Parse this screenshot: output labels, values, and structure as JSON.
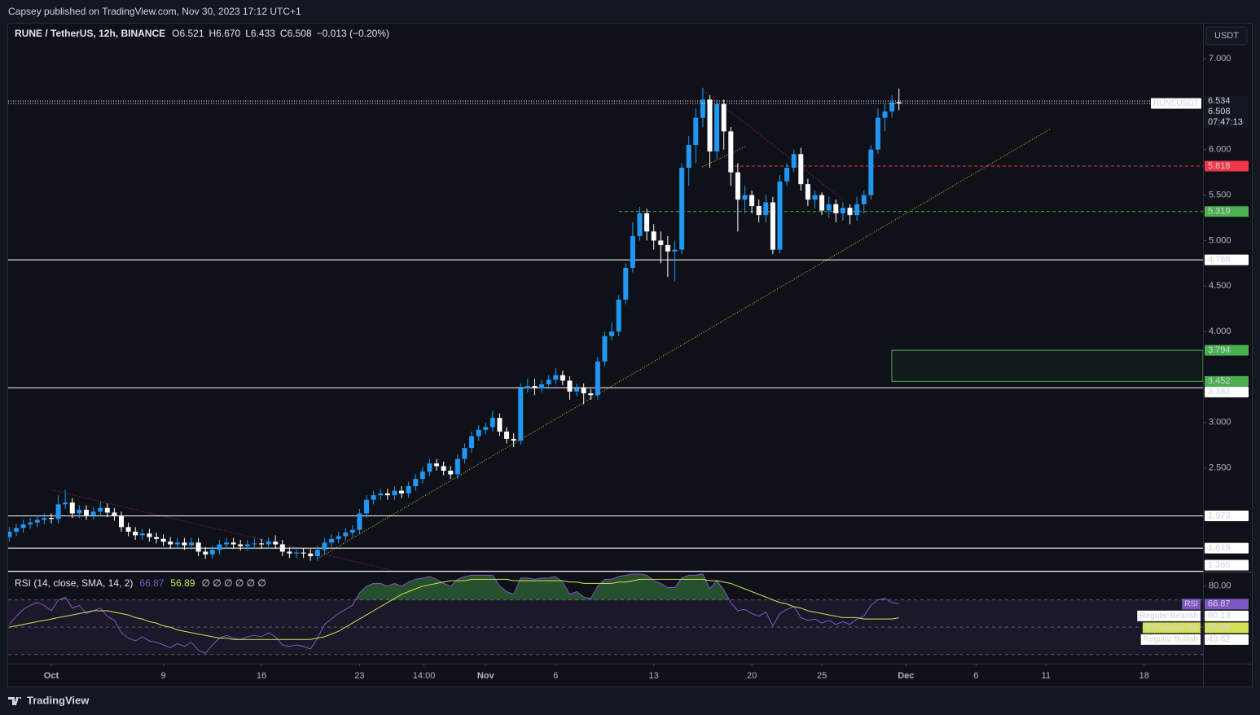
{
  "header": {
    "published": "Capsey published on TradingView.com, Nov 30, 2023 17:12 UTC+1",
    "currency": "USDT",
    "brand": "TradingView"
  },
  "chart_data": [
    {
      "type": "candlestick",
      "title": "RUNE / TetherUS, 12h, BINANCE",
      "legend": [
        "O6.521",
        "H6.670",
        "L6.433",
        "C6.508",
        "−0.013 (−0.20%)"
      ],
      "up_color": "#2196f3",
      "down_color": "#ffffff",
      "xlim": [
        -0.16,
        170.4
      ],
      "ylim": [
        1.36,
        7.376
      ],
      "yticks": [
        {
          "value": 7,
          "label": "7.000"
        },
        {
          "value": 6,
          "label": "6.000"
        },
        {
          "value": 5.5,
          "label": "5.500"
        },
        {
          "value": 5,
          "label": "5.000"
        },
        {
          "value": 4.5,
          "label": "4.500"
        },
        {
          "value": 4,
          "label": "4.000"
        },
        {
          "value": 3,
          "label": "3.000"
        },
        {
          "value": 2.5,
          "label": "2.500"
        }
      ],
      "ohlc": [
        [
          1.74,
          1.85,
          1.69,
          1.8
        ],
        [
          1.8,
          1.89,
          1.75,
          1.84
        ],
        [
          1.84,
          1.93,
          1.79,
          1.88
        ],
        [
          1.88,
          1.95,
          1.83,
          1.9
        ],
        [
          1.9,
          1.98,
          1.85,
          1.93
        ],
        [
          1.93,
          2.0,
          1.88,
          1.95
        ],
        [
          1.95,
          2.0,
          1.89,
          1.94
        ],
        [
          1.94,
          2.2,
          1.89,
          2.1
        ],
        [
          2.1,
          2.26,
          2.05,
          2.12
        ],
        [
          2.12,
          2.17,
          1.95,
          2.0
        ],
        [
          2.0,
          2.09,
          1.95,
          2.04
        ],
        [
          2.04,
          2.09,
          1.93,
          1.98
        ],
        [
          1.98,
          2.07,
          1.93,
          2.02
        ],
        [
          2.02,
          2.13,
          1.97,
          2.06
        ],
        [
          2.06,
          2.11,
          1.96,
          2.01
        ],
        [
          2.01,
          2.06,
          1.92,
          1.97
        ],
        [
          1.97,
          2.02,
          1.8,
          1.85
        ],
        [
          1.85,
          1.9,
          1.75,
          1.8
        ],
        [
          1.8,
          1.85,
          1.71,
          1.76
        ],
        [
          1.76,
          1.83,
          1.71,
          1.78
        ],
        [
          1.78,
          1.83,
          1.69,
          1.74
        ],
        [
          1.74,
          1.79,
          1.67,
          1.72
        ],
        [
          1.72,
          1.77,
          1.64,
          1.69
        ],
        [
          1.69,
          1.74,
          1.61,
          1.66
        ],
        [
          1.66,
          1.73,
          1.61,
          1.68
        ],
        [
          1.68,
          1.73,
          1.6,
          1.65
        ],
        [
          1.65,
          1.73,
          1.6,
          1.68
        ],
        [
          1.68,
          1.73,
          1.53,
          1.58
        ],
        [
          1.58,
          1.63,
          1.5,
          1.55
        ],
        [
          1.55,
          1.65,
          1.5,
          1.6
        ],
        [
          1.6,
          1.71,
          1.55,
          1.66
        ],
        [
          1.66,
          1.73,
          1.61,
          1.68
        ],
        [
          1.68,
          1.73,
          1.61,
          1.66
        ],
        [
          1.66,
          1.71,
          1.59,
          1.64
        ],
        [
          1.64,
          1.71,
          1.59,
          1.66
        ],
        [
          1.66,
          1.72,
          1.61,
          1.67
        ],
        [
          1.67,
          1.72,
          1.61,
          1.66
        ],
        [
          1.66,
          1.74,
          1.61,
          1.69
        ],
        [
          1.69,
          1.76,
          1.61,
          1.66
        ],
        [
          1.66,
          1.71,
          1.53,
          1.58
        ],
        [
          1.58,
          1.63,
          1.51,
          1.56
        ],
        [
          1.56,
          1.62,
          1.51,
          1.57
        ],
        [
          1.57,
          1.62,
          1.51,
          1.56
        ],
        [
          1.56,
          1.61,
          1.48,
          1.53
        ],
        [
          1.53,
          1.65,
          1.48,
          1.6
        ],
        [
          1.6,
          1.73,
          1.55,
          1.68
        ],
        [
          1.68,
          1.77,
          1.63,
          1.72
        ],
        [
          1.72,
          1.8,
          1.67,
          1.75
        ],
        [
          1.75,
          1.84,
          1.7,
          1.79
        ],
        [
          1.79,
          1.87,
          1.74,
          1.82
        ],
        [
          1.82,
          2.05,
          1.77,
          2.0
        ],
        [
          2.0,
          2.2,
          1.95,
          2.15
        ],
        [
          2.15,
          2.25,
          2.1,
          2.2
        ],
        [
          2.2,
          2.27,
          2.15,
          2.22
        ],
        [
          2.22,
          2.27,
          2.15,
          2.2
        ],
        [
          2.2,
          2.3,
          2.15,
          2.25
        ],
        [
          2.25,
          2.3,
          2.17,
          2.22
        ],
        [
          2.22,
          2.35,
          2.17,
          2.3
        ],
        [
          2.3,
          2.43,
          2.25,
          2.38
        ],
        [
          2.38,
          2.51,
          2.33,
          2.46
        ],
        [
          2.46,
          2.6,
          2.41,
          2.55
        ],
        [
          2.55,
          2.6,
          2.47,
          2.52
        ],
        [
          2.52,
          2.57,
          2.42,
          2.47
        ],
        [
          2.47,
          2.52,
          2.38,
          2.43
        ],
        [
          2.43,
          2.65,
          2.38,
          2.6
        ],
        [
          2.6,
          2.77,
          2.55,
          2.72
        ],
        [
          2.72,
          2.9,
          2.67,
          2.85
        ],
        [
          2.85,
          2.97,
          2.8,
          2.92
        ],
        [
          2.92,
          3.0,
          2.87,
          2.95
        ],
        [
          2.95,
          3.13,
          2.9,
          3.05
        ],
        [
          3.05,
          3.1,
          2.85,
          2.9
        ],
        [
          2.9,
          2.95,
          2.77,
          2.82
        ],
        [
          2.82,
          2.88,
          2.73,
          2.8
        ],
        [
          2.8,
          3.43,
          2.75,
          3.38
        ],
        [
          3.38,
          3.48,
          3.33,
          3.4
        ],
        [
          3.4,
          3.48,
          3.3,
          3.38
        ],
        [
          3.38,
          3.47,
          3.33,
          3.42
        ],
        [
          3.42,
          3.52,
          3.37,
          3.47
        ],
        [
          3.47,
          3.6,
          3.42,
          3.52
        ],
        [
          3.52,
          3.57,
          3.41,
          3.46
        ],
        [
          3.46,
          3.51,
          3.25,
          3.34
        ],
        [
          3.34,
          3.43,
          3.29,
          3.38
        ],
        [
          3.38,
          3.43,
          3.2,
          3.32
        ],
        [
          3.32,
          3.37,
          3.25,
          3.3
        ],
        [
          3.3,
          3.72,
          3.25,
          3.67
        ],
        [
          3.67,
          4.0,
          3.62,
          3.95
        ],
        [
          3.95,
          4.1,
          3.9,
          4.0
        ],
        [
          4.0,
          4.4,
          3.95,
          4.35
        ],
        [
          4.35,
          4.75,
          4.3,
          4.7
        ],
        [
          4.7,
          5.2,
          4.65,
          5.05
        ],
        [
          5.05,
          5.37,
          5.0,
          5.3
        ],
        [
          5.3,
          5.35,
          5.0,
          5.1
        ],
        [
          5.1,
          5.18,
          4.9,
          5.0
        ],
        [
          5.0,
          5.1,
          4.75,
          4.95
        ],
        [
          4.95,
          5.05,
          4.6,
          4.88
        ],
        [
          4.88,
          5.0,
          4.55,
          4.9
        ],
        [
          4.9,
          5.85,
          4.85,
          5.8
        ],
        [
          5.8,
          6.15,
          5.6,
          6.05
        ],
        [
          6.05,
          6.45,
          5.85,
          6.35
        ],
        [
          6.35,
          6.68,
          6.25,
          6.55
        ],
        [
          6.55,
          6.6,
          5.8,
          5.98
        ],
        [
          5.98,
          6.55,
          5.9,
          6.5
        ],
        [
          6.5,
          6.55,
          6.0,
          6.2
        ],
        [
          6.2,
          6.25,
          5.6,
          5.75
        ],
        [
          5.75,
          5.85,
          5.1,
          5.45
        ],
        [
          5.45,
          5.6,
          5.3,
          5.5
        ],
        [
          5.5,
          5.55,
          5.3,
          5.38
        ],
        [
          5.38,
          5.45,
          5.2,
          5.28
        ],
        [
          5.28,
          5.5,
          5.2,
          5.42
        ],
        [
          5.42,
          5.48,
          4.85,
          4.9
        ],
        [
          4.9,
          5.72,
          4.86,
          5.65
        ],
        [
          5.65,
          5.85,
          5.6,
          5.8
        ],
        [
          5.8,
          6.0,
          5.75,
          5.95
        ],
        [
          5.95,
          6.02,
          5.55,
          5.62
        ],
        [
          5.62,
          5.68,
          5.38,
          5.45
        ],
        [
          5.45,
          5.55,
          5.35,
          5.5
        ],
        [
          5.5,
          5.53,
          5.28,
          5.33
        ],
        [
          5.33,
          5.48,
          5.25,
          5.4
        ],
        [
          5.4,
          5.45,
          5.2,
          5.3
        ],
        [
          5.3,
          5.42,
          5.22,
          5.36
        ],
        [
          5.36,
          5.4,
          5.18,
          5.28
        ],
        [
          5.28,
          5.48,
          5.22,
          5.4
        ],
        [
          5.4,
          5.55,
          5.3,
          5.5
        ],
        [
          5.5,
          6.05,
          5.45,
          6.0
        ],
        [
          6.0,
          6.45,
          5.95,
          6.35
        ],
        [
          6.35,
          6.5,
          6.2,
          6.42
        ],
        [
          6.42,
          6.6,
          6.35,
          6.52
        ],
        [
          6.521,
          6.67,
          6.433,
          6.508
        ]
      ],
      "symbol_tag": "RUNEUSDT",
      "countdown": "07:47:13",
      "hlines": [
        {
          "value": 6.534,
          "color": "#ffffff",
          "style": "dotted"
        },
        {
          "value": 5.818,
          "color": "#f23645",
          "style": "dashed"
        },
        {
          "value": 5.319,
          "color": "#4caf50",
          "style": "dashed"
        },
        {
          "value": 4.788,
          "color": "#ffffff",
          "style": "solid"
        },
        {
          "value": 3.382,
          "color": "#ffffff",
          "style": "solid"
        },
        {
          "value": 1.973,
          "color": "#ffffff",
          "style": "solid"
        },
        {
          "value": 1.619,
          "color": "#ffffff",
          "style": "solid"
        },
        {
          "value": 1.366,
          "color": "#ffffff",
          "style": "solid"
        }
      ],
      "zone": {
        "from": 3.452,
        "to": 3.794,
        "color": "#4caf50"
      }
    },
    {
      "type": "rsi",
      "title": "RSI (14, close, SMA, 14, 2)",
      "legend_extra": "∅ ∅ ∅ ∅ ∅ ∅",
      "xlim": [
        -0.16,
        170.4
      ],
      "ylim": [
        23.3,
        90
      ],
      "yticks": [
        {
          "value": 80,
          "label": "80.00"
        }
      ],
      "levels": [
        70,
        50,
        30
      ],
      "series": [
        {
          "name": "RSI",
          "color": "#7e57c2",
          "values": [
            52,
            58,
            63,
            66,
            68,
            66,
            62,
            70,
            72,
            64,
            66,
            60,
            62,
            64,
            58,
            55,
            46,
            42,
            40,
            43,
            40,
            39,
            37,
            35,
            38,
            36,
            39,
            33,
            31,
            37,
            42,
            44,
            42,
            41,
            43,
            44,
            43,
            46,
            43,
            37,
            36,
            37,
            36,
            34,
            42,
            52,
            56,
            60,
            63,
            66,
            75,
            80,
            82,
            82,
            80,
            82,
            80,
            83,
            85,
            86,
            87,
            85,
            82,
            80,
            85,
            87,
            88,
            88,
            88,
            88,
            80,
            76,
            74,
            86,
            86,
            85,
            86,
            86,
            87,
            83,
            74,
            76,
            72,
            71,
            80,
            85,
            85,
            87,
            88,
            89,
            89,
            88,
            84,
            82,
            79,
            79,
            86,
            88,
            88,
            89,
            78,
            84,
            77,
            68,
            62,
            63,
            60,
            58,
            61,
            51,
            60,
            63,
            65,
            57,
            55,
            56,
            53,
            55,
            52,
            54,
            52,
            56,
            58,
            66,
            70,
            71,
            68,
            66.87
          ]
        },
        {
          "name": "RSI-based MA",
          "color": "#d4e157",
          "values": [
            50,
            51,
            52,
            53,
            54,
            55,
            56,
            57,
            58,
            59,
            60,
            61,
            62,
            62,
            62,
            61,
            60,
            59,
            57,
            56,
            54,
            53,
            51,
            50,
            48,
            47,
            46,
            45,
            44,
            43,
            42,
            42,
            41,
            41,
            41,
            41,
            41,
            41,
            41,
            41,
            41,
            41,
            41,
            41,
            42,
            43,
            45,
            47,
            50,
            53,
            56,
            59,
            62,
            65,
            68,
            71,
            74,
            76,
            78,
            80,
            81,
            82,
            83,
            84,
            84,
            84,
            85,
            85,
            85,
            85,
            85,
            85,
            84,
            84,
            84,
            84,
            84,
            84,
            84,
            84,
            83,
            83,
            82,
            82,
            82,
            82,
            82,
            83,
            83,
            84,
            85,
            85,
            85,
            85,
            85,
            85,
            85,
            85,
            85,
            85,
            84,
            84,
            83,
            82,
            80,
            78,
            76,
            74,
            72,
            70,
            68,
            67,
            65,
            64,
            62,
            61,
            60,
            59,
            58,
            57,
            57,
            57,
            56,
            56,
            56,
            56,
            56,
            56.89
          ]
        }
      ],
      "markers": [
        {
          "name": "Regular Bearish",
          "value": 60.13
        },
        {
          "name": "Regular Bullish",
          "value": 49.62
        }
      ],
      "xticks": [
        {
          "value": 6,
          "label": "Oct"
        },
        {
          "value": 22,
          "label": "9"
        },
        {
          "value": 36,
          "label": "16"
        },
        {
          "value": 50,
          "label": "23"
        },
        {
          "value": 59.2,
          "label": "14:00"
        },
        {
          "value": 68,
          "label": "Nov"
        },
        {
          "value": 78,
          "label": "6"
        },
        {
          "value": 92,
          "label": "13"
        },
        {
          "value": 106,
          "label": "20"
        },
        {
          "value": 116,
          "label": "25"
        },
        {
          "value": 128,
          "label": "Dec"
        },
        {
          "value": 138,
          "label": "6"
        },
        {
          "value": 148,
          "label": "11"
        },
        {
          "value": 162,
          "label": "18"
        }
      ]
    }
  ]
}
